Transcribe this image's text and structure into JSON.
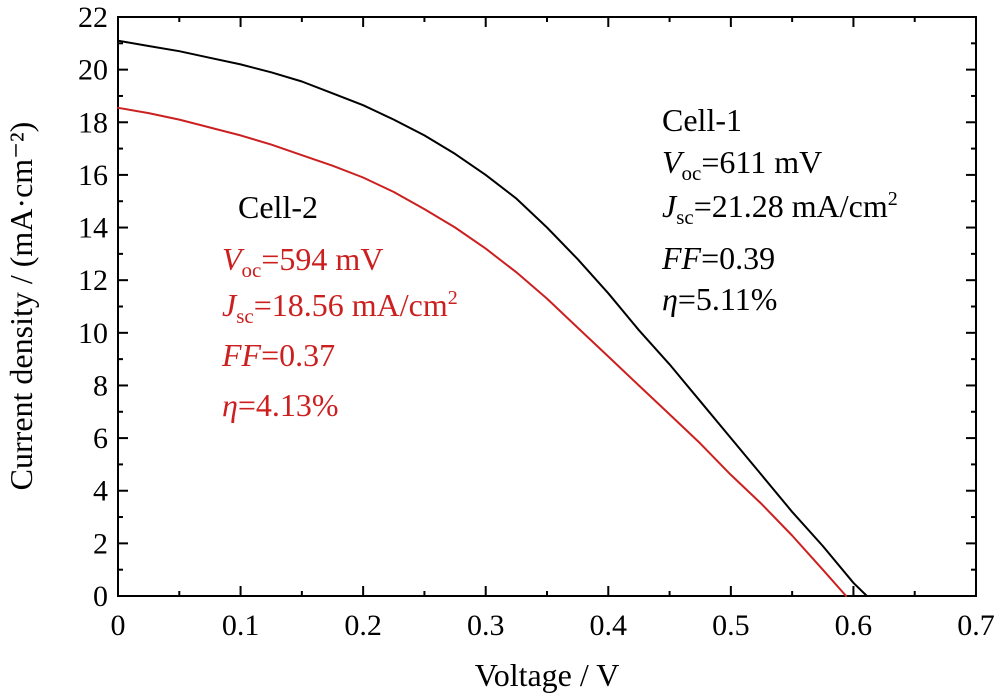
{
  "chart_data": {
    "type": "line",
    "xlabel": "Voltage / V",
    "ylabel": "Current density / (mA·cm⁻²)",
    "xlim": [
      0,
      0.7
    ],
    "ylim": [
      0,
      22
    ],
    "x_ticks": [
      "0",
      "0.1",
      "0.2",
      "0.3",
      "0.4",
      "0.5",
      "0.6",
      "0.7"
    ],
    "y_ticks": [
      "0",
      "2",
      "4",
      "6",
      "8",
      "10",
      "12",
      "14",
      "16",
      "18",
      "20",
      "22"
    ],
    "grid": false,
    "series": [
      {
        "name": "Cell-1",
        "color": "#000000",
        "x": [
          0,
          0.025,
          0.05,
          0.075,
          0.1,
          0.125,
          0.15,
          0.175,
          0.2,
          0.225,
          0.25,
          0.275,
          0.3,
          0.325,
          0.35,
          0.375,
          0.4,
          0.425,
          0.45,
          0.475,
          0.5,
          0.525,
          0.55,
          0.575,
          0.6,
          0.611
        ],
        "y": [
          21.1,
          20.9,
          20.7,
          20.45,
          20.2,
          19.9,
          19.55,
          19.1,
          18.65,
          18.1,
          17.5,
          16.8,
          16.0,
          15.1,
          14.0,
          12.8,
          11.5,
          10.1,
          8.8,
          7.4,
          6.0,
          4.6,
          3.2,
          1.9,
          0.5,
          0
        ]
      },
      {
        "name": "Cell-2",
        "color": "#cc2020",
        "x": [
          0,
          0.025,
          0.05,
          0.075,
          0.1,
          0.125,
          0.15,
          0.175,
          0.2,
          0.225,
          0.25,
          0.275,
          0.3,
          0.325,
          0.35,
          0.375,
          0.4,
          0.425,
          0.45,
          0.475,
          0.5,
          0.525,
          0.55,
          0.575,
          0.594
        ],
        "y": [
          18.55,
          18.35,
          18.1,
          17.8,
          17.5,
          17.15,
          16.75,
          16.35,
          15.9,
          15.35,
          14.7,
          14.0,
          13.2,
          12.3,
          11.3,
          10.2,
          9.1,
          8.0,
          6.9,
          5.8,
          4.6,
          3.5,
          2.3,
          1.0,
          0
        ]
      }
    ],
    "annotations": [
      {
        "color": "#000000",
        "title": "Cell-1",
        "voc_sym": "V",
        "voc_sub": "oc",
        "voc_val": "=611 mV",
        "jsc_sym": "J",
        "jsc_sub": "sc",
        "jsc_val": "=21.28 mA/cm",
        "jsc_sup": "2",
        "ff_sym": "FF",
        "ff_val": "=0.39",
        "eta_sym": "η",
        "eta_val": "=5.11%"
      },
      {
        "color": "#cc2020",
        "title": "Cell-2",
        "voc_sym": "V",
        "voc_sub": "oc",
        "voc_val": "=594 mV",
        "jsc_sym": "J",
        "jsc_sub": "sc",
        "jsc_val": "=18.56 mA/cm",
        "jsc_sup": "2",
        "ff_sym": "FF",
        "ff_val": "=0.37",
        "eta_sym": "η",
        "eta_val": "=4.13%"
      }
    ]
  }
}
